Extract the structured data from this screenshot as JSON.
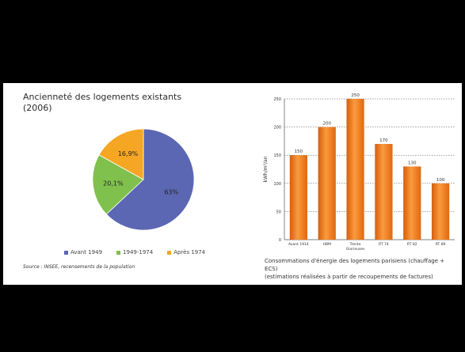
{
  "colors": {
    "background": "#000000",
    "panel": "#ffffff",
    "avant_1949": "#5b67b3",
    "y1949_1974": "#80c14d",
    "apres_1974": "#f5a623",
    "bar": "#f07b1d"
  },
  "pie_panel": {
    "title": "Ancienneté des logements existants (2006)",
    "source": "Source : INSEE, recensements de la population",
    "legend": [
      {
        "label": "Avant 1949",
        "color": "#5b67b3"
      },
      {
        "label": "1949-1974",
        "color": "#80c14d"
      },
      {
        "label": "Après 1974",
        "color": "#f5a623"
      }
    ]
  },
  "bar_panel": {
    "caption_line1": "Consommations d'énergie des logements parisiens (chauffage + ECS)",
    "caption_line2": "(estimations réalisées à partir de recoupements de factures)"
  },
  "chart_data": [
    {
      "type": "pie",
      "title": "Ancienneté des logements existants (2006)",
      "categories": [
        "Avant 1949",
        "1949-1974",
        "Après 1974"
      ],
      "values": [
        63,
        20.1,
        16.9
      ],
      "value_labels": [
        "63%",
        "20,1%",
        "16,9%"
      ],
      "colors": [
        "#5b67b3",
        "#80c14d",
        "#f5a623"
      ],
      "legend_position": "bottom"
    },
    {
      "type": "bar",
      "categories": [
        "Avant 1914",
        "HBM",
        "Trente Glorieuses",
        "RT 74",
        "RT 82",
        "RT 89"
      ],
      "values": [
        150,
        200,
        250,
        170,
        130,
        100
      ],
      "value_labels": [
        "150",
        "200",
        "250",
        "170",
        "130",
        "100"
      ],
      "ylabel": "kWh/m²/an",
      "ylim": [
        0,
        250
      ],
      "yticks": [
        0,
        50,
        100,
        150,
        200,
        250
      ],
      "grid": true,
      "color": "#f07b1d"
    }
  ]
}
